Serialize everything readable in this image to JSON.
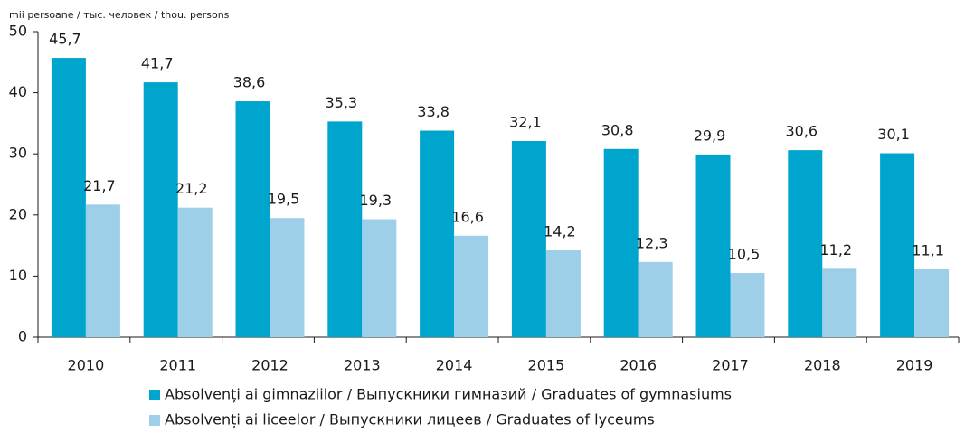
{
  "chart_data": {
    "type": "bar",
    "y_axis_label": "mii persoane / тыс. человек / thou. persons",
    "categories": [
      "2010",
      "2011",
      "2012",
      "2013",
      "2014",
      "2015",
      "2016",
      "2017",
      "2018",
      "2019"
    ],
    "series": [
      {
        "name": "Absolvenți ai gimnaziilor / Выпускники гимназий / Graduates of gymnasiums",
        "color": "#00a5cd",
        "values": [
          45.7,
          41.7,
          38.6,
          35.3,
          33.8,
          32.1,
          30.8,
          29.9,
          30.6,
          30.1
        ],
        "value_labels": [
          "45,7",
          "41,7",
          "38,6",
          "35,3",
          "33,8",
          "32,1",
          "30,8",
          "29,9",
          "30,6",
          "30,1"
        ]
      },
      {
        "name": "Absolvenți ai liceelor / Выпускники лицеев / Graduates of lyceums",
        "color": "#9dd0e8",
        "values": [
          21.7,
          21.2,
          19.5,
          19.3,
          16.6,
          14.2,
          12.3,
          10.5,
          11.2,
          11.1
        ],
        "value_labels": [
          "21,7",
          "21,2",
          "19,5",
          "19,3",
          "16,6",
          "14,2",
          "12,3",
          "10,5",
          "11,2",
          "11,1"
        ]
      }
    ],
    "ylim": [
      0,
      50
    ],
    "yticks": [
      0,
      10,
      20,
      30,
      40,
      50
    ],
    "grid": false
  }
}
